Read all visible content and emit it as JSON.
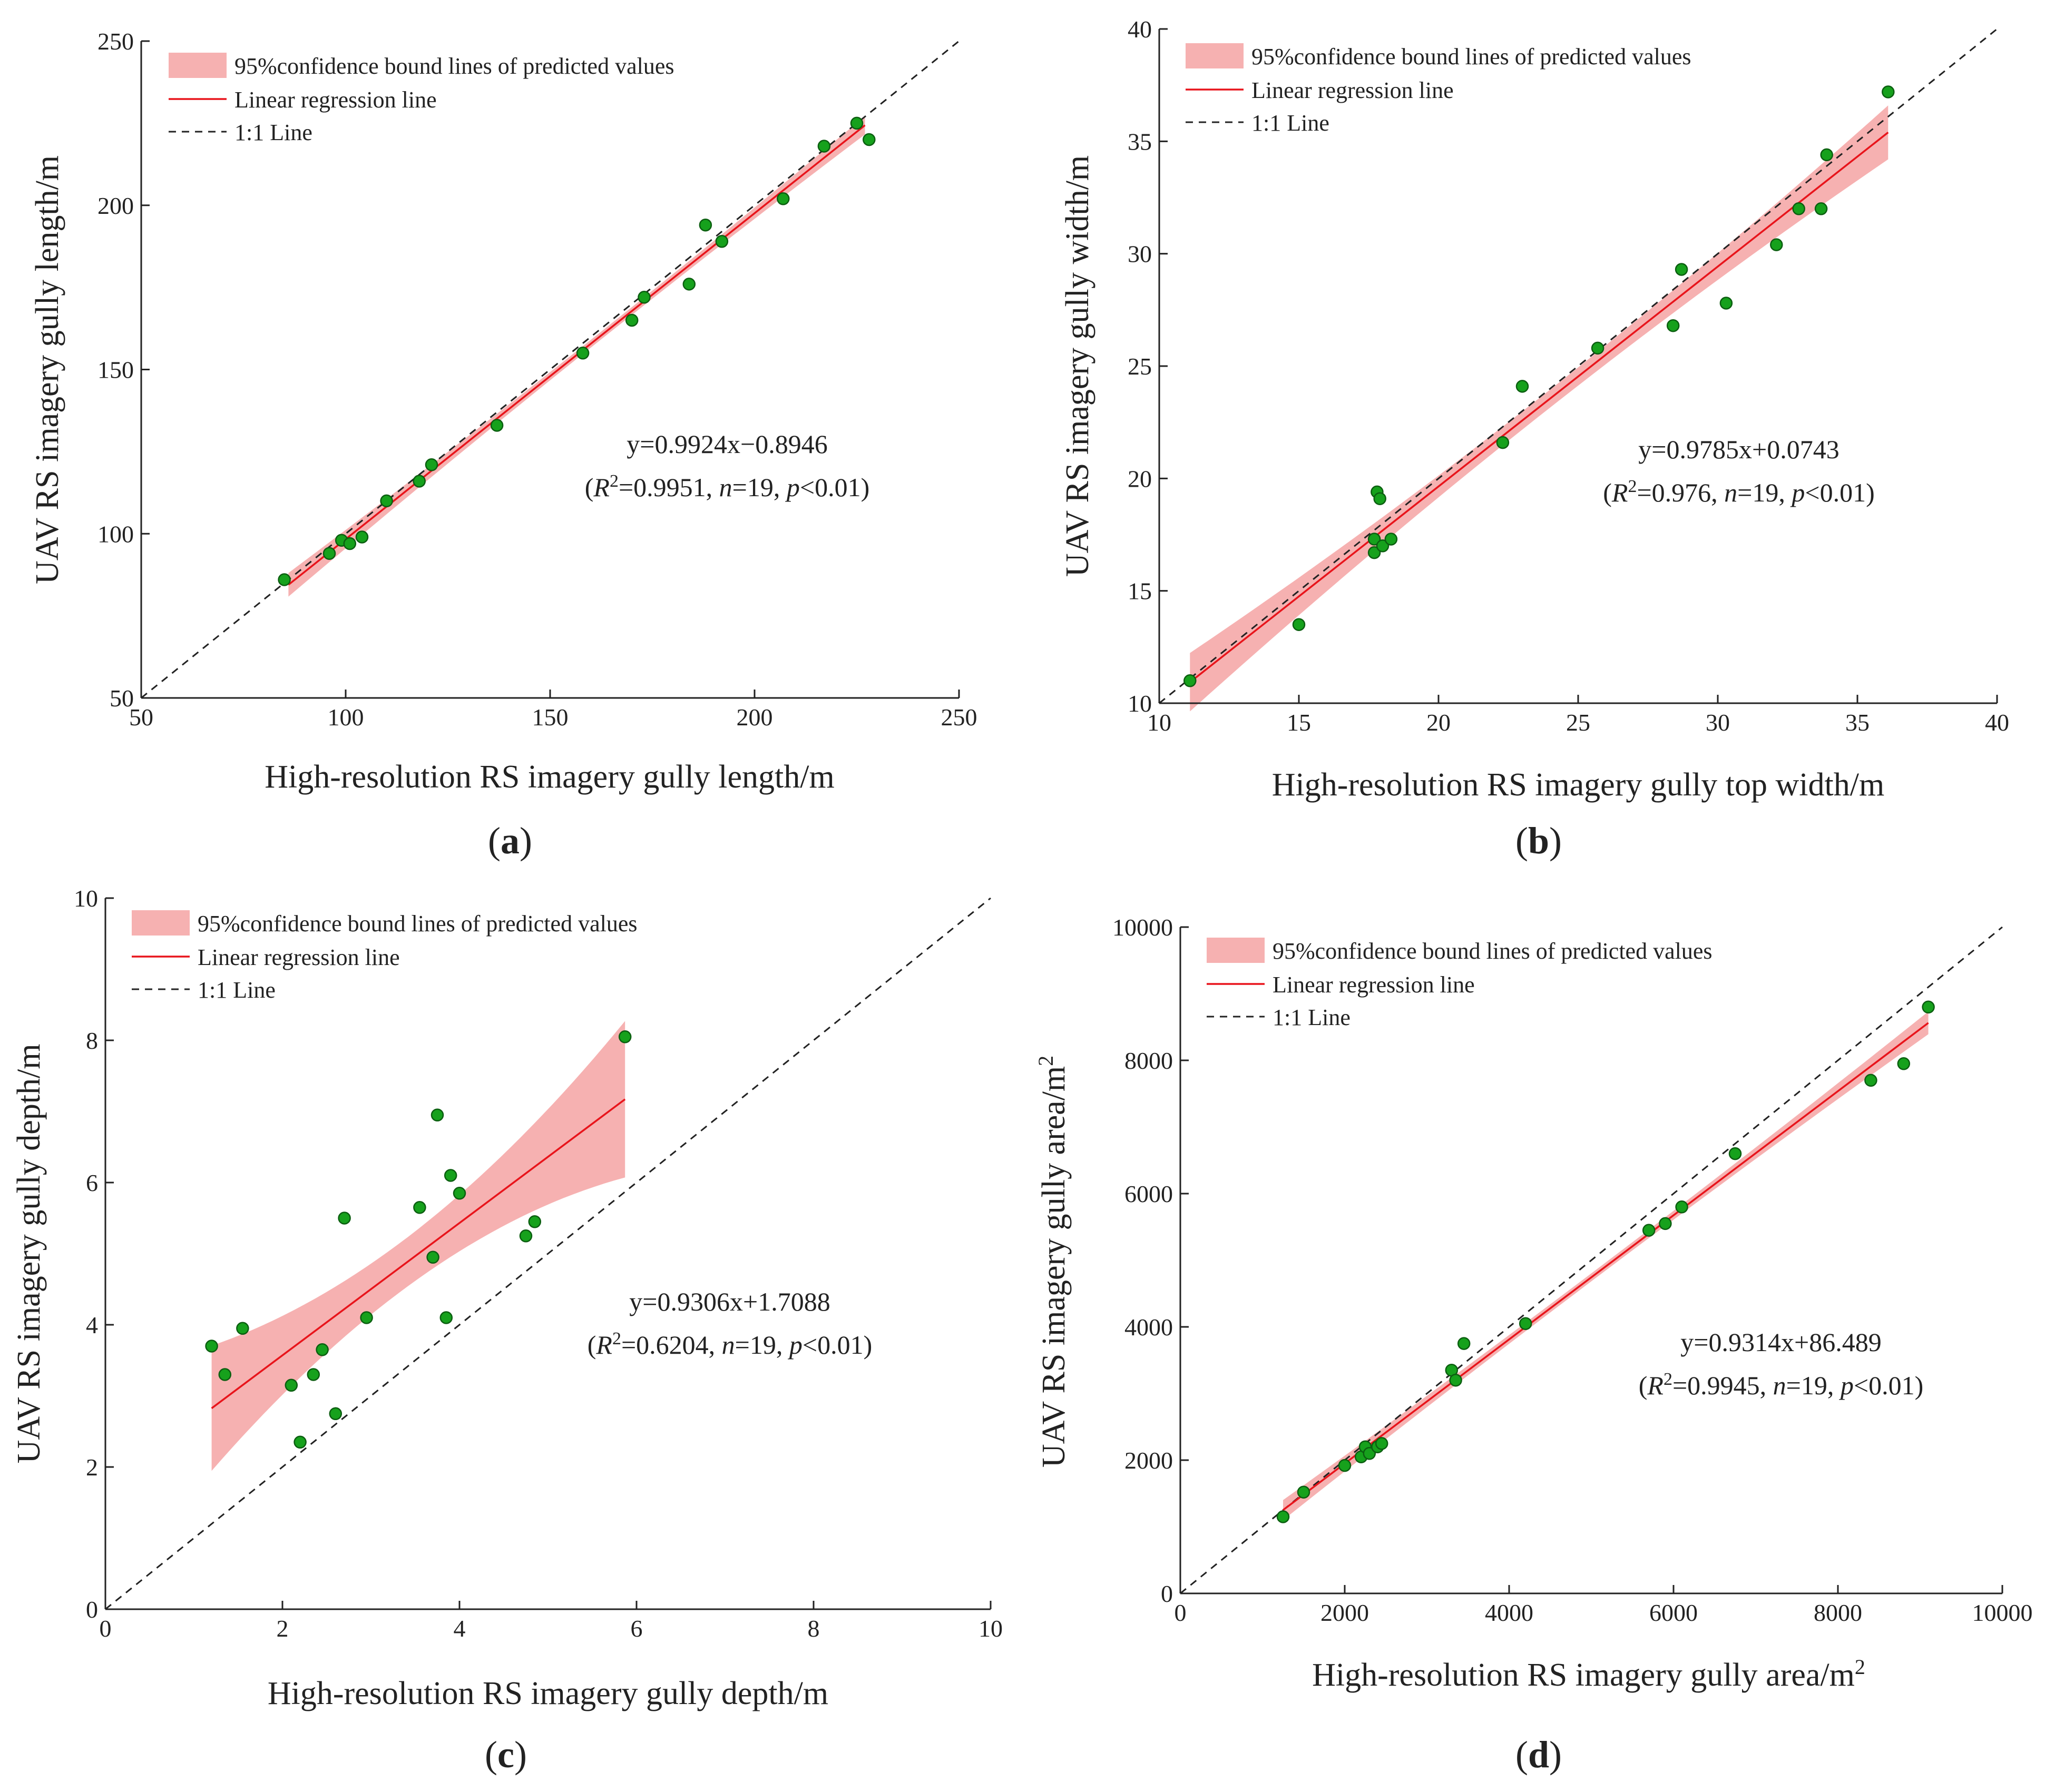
{
  "figure": {
    "colors": {
      "band": "#f4a3a3",
      "regression": "#e8141b",
      "one_to_one": "#222222",
      "point_fill": "#16a11c",
      "point_edge": "#0b5e10",
      "axis": "#222222"
    }
  },
  "chart_data": [
    {
      "type": "scatter",
      "panel_label": "a",
      "xlabel": "High-resolution RS imagery gully length/m",
      "ylabel": "UAV RS imagery gully length/m",
      "xlim": [
        50,
        250
      ],
      "ylim": [
        50,
        250
      ],
      "xticks": [
        50,
        100,
        150,
        200,
        250
      ],
      "yticks": [
        50,
        100,
        150,
        200,
        250
      ],
      "legend": {
        "placement": "top-left",
        "entries": [
          "95%confidence bound lines of predicted values",
          "Linear regression line",
          "1:1 Line"
        ]
      },
      "equation": {
        "line1": "y=0.9924x−0.8946",
        "r2_value": "0.9951",
        "n": "19",
        "p": "0.01"
      },
      "regression": {
        "slope": 0.9924,
        "intercept": -0.8946,
        "x_range": [
          86,
          227
        ]
      },
      "band_halfwidth": {
        "at_min": 3.6,
        "at_mid": 1.2,
        "at_max": 2.8
      },
      "points": [
        [
          85,
          86
        ],
        [
          96,
          94
        ],
        [
          99,
          98
        ],
        [
          101,
          97
        ],
        [
          104,
          99
        ],
        [
          110,
          110
        ],
        [
          118,
          116
        ],
        [
          121,
          121
        ],
        [
          137,
          133
        ],
        [
          158,
          155
        ],
        [
          170,
          165
        ],
        [
          173,
          172
        ],
        [
          184,
          176
        ],
        [
          188,
          194
        ],
        [
          192,
          189
        ],
        [
          207,
          202
        ],
        [
          217,
          218
        ],
        [
          225,
          225
        ],
        [
          228,
          220
        ]
      ]
    },
    {
      "type": "scatter",
      "panel_label": "b",
      "xlabel": "High-resolution RS imagery gully top width/m",
      "ylabel": "UAV RS imagery gully width/m",
      "xlim": [
        10,
        40
      ],
      "ylim": [
        10,
        40
      ],
      "xticks": [
        10,
        15,
        20,
        25,
        30,
        35,
        40
      ],
      "yticks": [
        10,
        15,
        20,
        25,
        30,
        35,
        40
      ],
      "legend": {
        "placement": "top-left",
        "entries": [
          "95%confidence bound lines of predicted values",
          "Linear regression line",
          "1:1 Line"
        ]
      },
      "equation": {
        "line1": "y=0.9785x+0.0743",
        "r2_value": "0.976",
        "n": "19",
        "p": "0.01"
      },
      "regression": {
        "slope": 0.9785,
        "intercept": 0.0743,
        "x_range": [
          11.1,
          36.1
        ]
      },
      "band_halfwidth": {
        "at_min": 1.3,
        "at_mid": 0.4,
        "at_max": 1.2
      },
      "points": [
        [
          11.1,
          11.0
        ],
        [
          15.0,
          13.5
        ],
        [
          17.7,
          17.3
        ],
        [
          17.7,
          16.7
        ],
        [
          17.8,
          19.4
        ],
        [
          17.9,
          19.1
        ],
        [
          18.0,
          17.0
        ],
        [
          18.3,
          17.3
        ],
        [
          22.3,
          21.6
        ],
        [
          23.0,
          24.1
        ],
        [
          25.7,
          25.8
        ],
        [
          28.4,
          26.8
        ],
        [
          28.7,
          29.3
        ],
        [
          30.3,
          27.8
        ],
        [
          32.1,
          30.4
        ],
        [
          32.9,
          32.0
        ],
        [
          33.7,
          32.0
        ],
        [
          33.9,
          34.4
        ],
        [
          36.1,
          37.2
        ]
      ]
    },
    {
      "type": "scatter",
      "panel_label": "c",
      "xlabel": "High-resolution RS imagery gully depth/m",
      "ylabel": "UAV RS imagery gully depth/m",
      "xlim": [
        0,
        10
      ],
      "ylim": [
        0,
        10
      ],
      "xticks": [
        0,
        2,
        4,
        6,
        8,
        10
      ],
      "yticks": [
        0,
        2,
        4,
        6,
        8,
        10
      ],
      "legend": {
        "placement": "top-left",
        "entries": [
          "95%confidence bound lines of predicted values",
          "Linear regression line",
          "1:1 Line"
        ]
      },
      "equation": {
        "line1": "y=0.9306x+1.7088",
        "r2_value": "0.6204",
        "n": "19",
        "p": "0.01"
      },
      "regression": {
        "slope": 0.9306,
        "intercept": 1.7088,
        "x_range": [
          1.2,
          5.87
        ]
      },
      "band_halfwidth": {
        "at_min": 0.88,
        "at_mid": 0.35,
        "at_max": 1.1
      },
      "points": [
        [
          1.2,
          3.7
        ],
        [
          1.35,
          3.3
        ],
        [
          1.55,
          3.95
        ],
        [
          2.1,
          3.15
        ],
        [
          2.2,
          2.35
        ],
        [
          2.35,
          3.3
        ],
        [
          2.45,
          3.65
        ],
        [
          2.6,
          2.75
        ],
        [
          2.7,
          5.5
        ],
        [
          2.95,
          4.1
        ],
        [
          3.55,
          5.65
        ],
        [
          3.7,
          4.95
        ],
        [
          3.75,
          6.95
        ],
        [
          3.85,
          4.1
        ],
        [
          3.9,
          6.1
        ],
        [
          4.0,
          5.85
        ],
        [
          4.75,
          5.25
        ],
        [
          4.85,
          5.45
        ],
        [
          5.87,
          8.05
        ]
      ]
    },
    {
      "type": "scatter",
      "panel_label": "d",
      "xlabel": "High-resolution RS imagery gully area/m",
      "xlabel_sup": "2",
      "ylabel": "UAV RS imagery gully area/m",
      "ylabel_sup": "2",
      "xlim": [
        0,
        10000
      ],
      "ylim": [
        0,
        10000
      ],
      "xticks": [
        0,
        2000,
        4000,
        6000,
        8000,
        10000
      ],
      "yticks": [
        0,
        2000,
        4000,
        6000,
        8000,
        10000
      ],
      "legend": {
        "placement": "top-left",
        "entries": [
          "95%confidence bound lines of predicted values",
          "Linear regression line",
          "1:1 Line"
        ]
      },
      "equation": {
        "line1": "y=0.9314x+86.489",
        "r2_value": "0.9945",
        "n": "19",
        "p": "0.01"
      },
      "regression": {
        "slope": 0.9314,
        "intercept": 86.489,
        "x_range": [
          1250,
          9100
        ]
      },
      "band_halfwidth": {
        "at_min": 150,
        "at_mid": 60,
        "at_max": 170
      },
      "points": [
        [
          1250,
          1150
        ],
        [
          1500,
          1520
        ],
        [
          2000,
          1920
        ],
        [
          2200,
          2050
        ],
        [
          2250,
          2200
        ],
        [
          2300,
          2100
        ],
        [
          2400,
          2200
        ],
        [
          2450,
          2250
        ],
        [
          3300,
          3350
        ],
        [
          3350,
          3200
        ],
        [
          3450,
          3750
        ],
        [
          4200,
          4050
        ],
        [
          5700,
          5450
        ],
        [
          5900,
          5550
        ],
        [
          6100,
          5800
        ],
        [
          6750,
          6600
        ],
        [
          8400,
          7700
        ],
        [
          8800,
          7950
        ],
        [
          9100,
          8800
        ]
      ]
    }
  ],
  "panel_labels": [
    "a",
    "b",
    "c",
    "d"
  ],
  "equation_text": {
    "r2_symbol": "R",
    "r2_exp": "2",
    "n_symbol": "n",
    "p_symbol": "p"
  }
}
